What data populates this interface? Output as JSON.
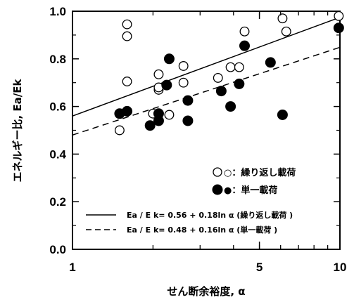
{
  "chart_data": {
    "type": "scatter",
    "x_scale": "log",
    "xlim": [
      1,
      10
    ],
    "ylim": [
      0.0,
      1.0
    ],
    "xlabel": "せん断余裕度, α",
    "ylabel": "エネルギー比, Ea/Ek",
    "x_ticks": [
      "1",
      "5",
      "10"
    ],
    "y_ticks": [
      "0.0",
      "0.2",
      "0.4",
      "0.6",
      "0.8",
      "1.0"
    ],
    "grid": false,
    "legend_position": "bottom-right",
    "series": [
      {
        "name": "繰り返し載荷",
        "marker": "open-circle",
        "color": "#000000",
        "points": [
          {
            "x": 1.5,
            "y": 0.5
          },
          {
            "x": 1.6,
            "y": 0.945
          },
          {
            "x": 1.6,
            "y": 0.895
          },
          {
            "x": 1.6,
            "y": 0.705
          },
          {
            "x": 2.0,
            "y": 0.57
          },
          {
            "x": 2.1,
            "y": 0.735
          },
          {
            "x": 2.1,
            "y": 0.67
          },
          {
            "x": 2.1,
            "y": 0.68
          },
          {
            "x": 2.3,
            "y": 0.565
          },
          {
            "x": 2.6,
            "y": 0.77
          },
          {
            "x": 2.6,
            "y": 0.7
          },
          {
            "x": 3.5,
            "y": 0.72
          },
          {
            "x": 3.9,
            "y": 0.765
          },
          {
            "x": 4.2,
            "y": 0.765
          },
          {
            "x": 4.4,
            "y": 0.915
          },
          {
            "x": 6.1,
            "y": 0.97
          },
          {
            "x": 6.3,
            "y": 0.915
          },
          {
            "x": 9.9,
            "y": 0.98
          }
        ]
      },
      {
        "name": "単一載荷",
        "marker": "filled-circle",
        "color": "#000000",
        "points": [
          {
            "x": 1.5,
            "y": 0.57
          },
          {
            "x": 1.6,
            "y": 0.58
          },
          {
            "x": 1.95,
            "y": 0.52
          },
          {
            "x": 2.1,
            "y": 0.57
          },
          {
            "x": 2.1,
            "y": 0.54
          },
          {
            "x": 2.25,
            "y": 0.69
          },
          {
            "x": 2.3,
            "y": 0.8
          },
          {
            "x": 2.7,
            "y": 0.625
          },
          {
            "x": 2.7,
            "y": 0.54
          },
          {
            "x": 3.6,
            "y": 0.665
          },
          {
            "x": 3.9,
            "y": 0.6
          },
          {
            "x": 4.2,
            "y": 0.695
          },
          {
            "x": 4.4,
            "y": 0.855
          },
          {
            "x": 5.5,
            "y": 0.785
          },
          {
            "x": 6.1,
            "y": 0.565
          },
          {
            "x": 9.9,
            "y": 0.93
          }
        ]
      }
    ],
    "fit_lines": [
      {
        "name": "Ea / E k= 0.56 + 0.18ln α (繰り返し載荷 )",
        "style": "solid",
        "a": 0.56,
        "b": 0.18
      },
      {
        "name": "Ea / E k= 0.48 + 0.16ln α (単一載荷 )",
        "style": "dashed",
        "a": 0.48,
        "b": 0.16
      }
    ],
    "legend": {
      "open_label": "○：繰り返し載荷",
      "filled_label": "●：単一載荷",
      "solid_label": "Ea / E k= 0.56 + 0.18ln α (繰り返し載荷 )",
      "dashed_label": "Ea / E k= 0.48 + 0.16ln α (単一載荷 )"
    }
  }
}
